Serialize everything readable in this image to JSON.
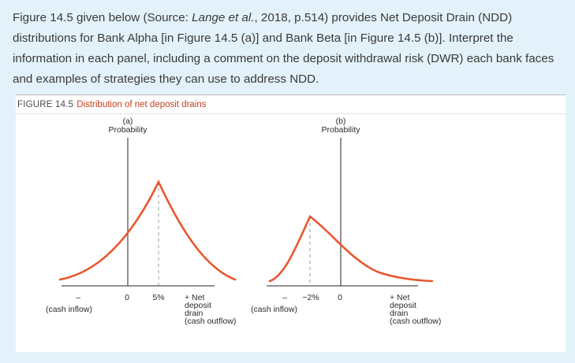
{
  "question": {
    "p1": "Figure 14.5 given below (Source: ",
    "source_italic": "Lange et al.",
    "p2": ", 2018, p.514) provides Net Deposit Drain (NDD) distributions for Bank Alpha [in Figure 14.5 (a)] and Bank Beta [in Figure 14.5 (b)]. Interpret the information in each panel, including a comment on the deposit withdrawal risk (DWR) each bank faces and examples of strategies they can use to address NDD."
  },
  "figure": {
    "number": "FIGURE 14.5",
    "title": "Distribution of net deposit drains",
    "panels": [
      {
        "letter": "(a)",
        "ylabel": "Probability",
        "zero_label": "0",
        "mode_label": "5%",
        "minus_label": "–",
        "inflow_label": "(cash inflow)",
        "plus_lines": [
          "+ Net",
          "deposit",
          "drain",
          "(cash outflow)"
        ]
      },
      {
        "letter": "(b)",
        "ylabel": "Probability",
        "zero_label": "0",
        "mode_label": "−2%",
        "minus_label": "–",
        "inflow_label": "(cash inflow)",
        "plus_lines": [
          "+ Net",
          "deposit",
          "drain",
          "(cash outflow)"
        ]
      }
    ]
  },
  "colors": {
    "background": "#e3f2fa",
    "curve": "#e8572e",
    "title": "#c8401e",
    "axis": "#222222"
  }
}
